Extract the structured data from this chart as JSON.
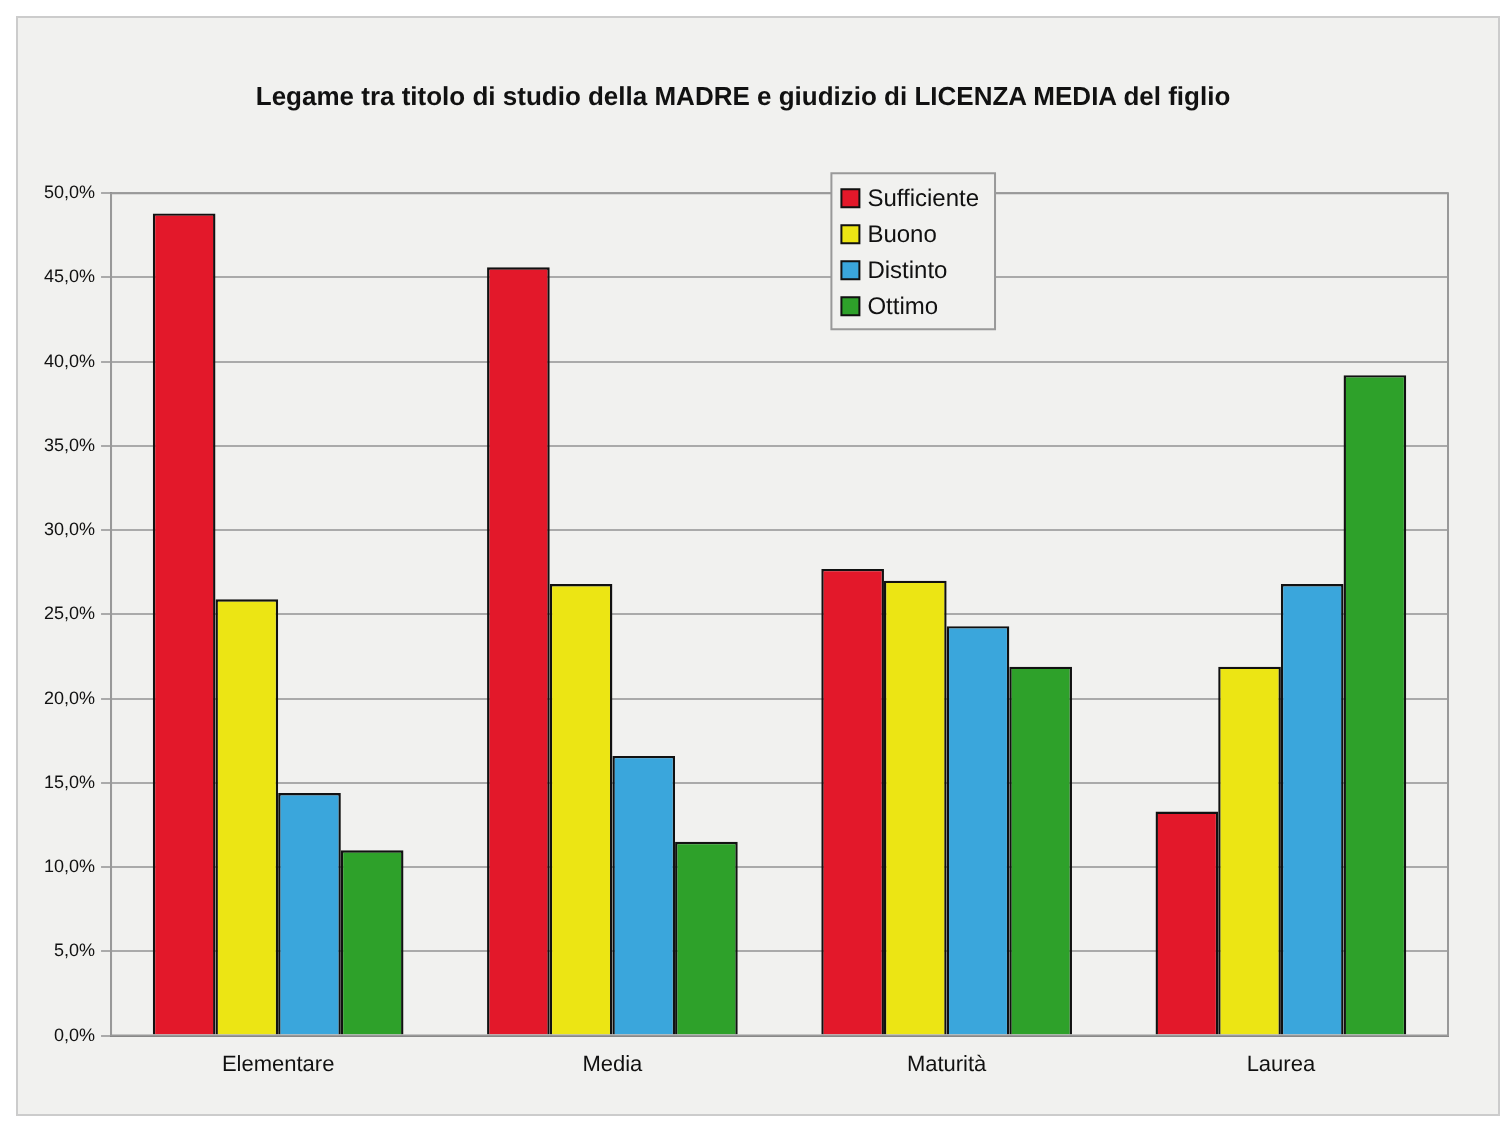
{
  "chart_data": {
    "type": "bar",
    "title": "Legame tra titolo di studio della MADRE e giudizio di LICENZA MEDIA del figlio",
    "categories": [
      "Elementare",
      "Media",
      "Maturità",
      "Laurea"
    ],
    "series": [
      {
        "name": "Sufficiente",
        "color": "#e3182a",
        "values": [
          48.8,
          45.6,
          27.7,
          13.3
        ]
      },
      {
        "name": "Buono",
        "color": "#ece514",
        "values": [
          25.9,
          26.8,
          27.0,
          21.9
        ]
      },
      {
        "name": "Distinto",
        "color": "#3aa6dc",
        "values": [
          14.4,
          16.6,
          24.3,
          26.8
        ]
      },
      {
        "name": "Ottimo",
        "color": "#2ea12a",
        "values": [
          11.0,
          11.5,
          21.9,
          39.2
        ]
      }
    ],
    "ylim": [
      0,
      50
    ],
    "yticks": [
      {
        "value": 0,
        "label": "0,0%"
      },
      {
        "value": 5,
        "label": "5,0%"
      },
      {
        "value": 10,
        "label": "10,0%"
      },
      {
        "value": 15,
        "label": "15,0%"
      },
      {
        "value": 20,
        "label": "20,0%"
      },
      {
        "value": 25,
        "label": "25,0%"
      },
      {
        "value": 30,
        "label": "30,0%"
      },
      {
        "value": 35,
        "label": "35,0%"
      },
      {
        "value": 40,
        "label": "40,0%"
      },
      {
        "value": 45,
        "label": "45,0%"
      },
      {
        "value": 50,
        "label": "50,0%"
      }
    ],
    "grid": "y",
    "legend": "top"
  }
}
